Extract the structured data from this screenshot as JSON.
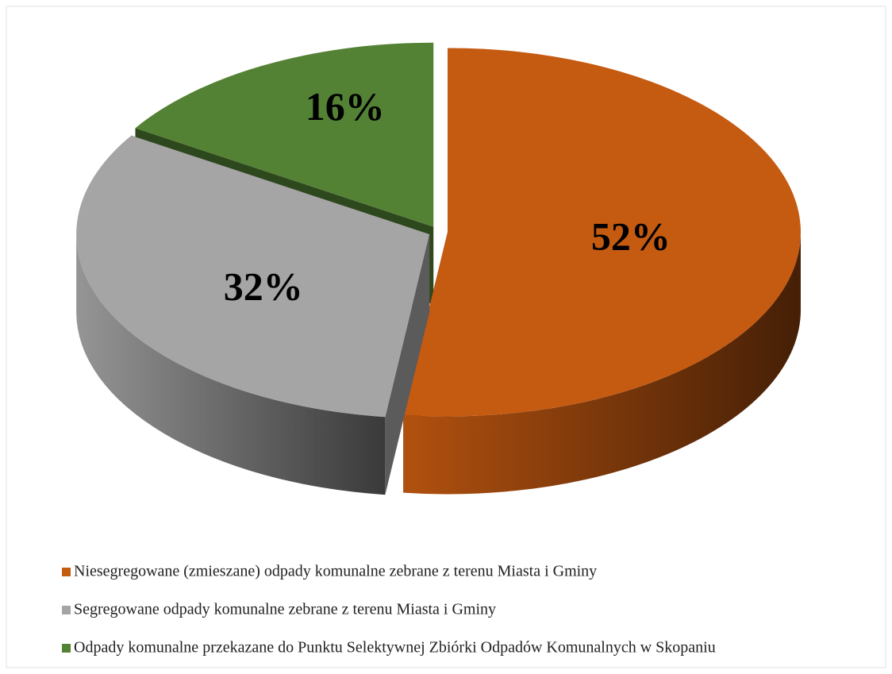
{
  "chart_data": {
    "type": "pie",
    "categories": [
      "Niesegregowane (zmieszane) odpady komunalne zebrane z terenu Miasta i Gminy",
      "Segregowane odpady komunalne zebrane z terenu Miasta i Gminy",
      "Odpady komunalne przekazane do Punktu Selektywnej Zbiórki Odpadów Komunalnych w Skopaniu"
    ],
    "values": [
      52,
      32,
      16
    ],
    "value_labels": [
      "52%",
      "32%",
      "16%"
    ],
    "colors": [
      "#c55a11",
      "#a5a5a5",
      "#548235"
    ],
    "legend": "bottom"
  }
}
